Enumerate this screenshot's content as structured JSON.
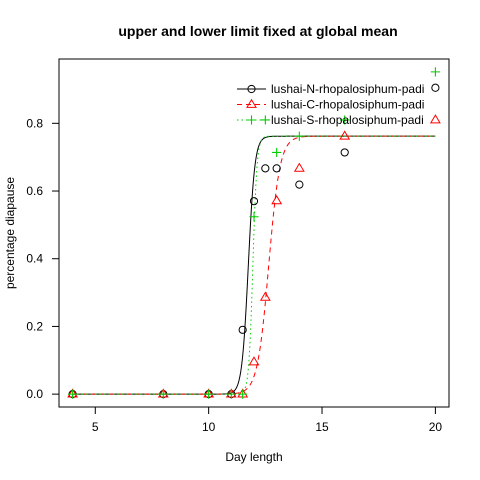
{
  "chart_data": {
    "type": "scatter",
    "title": "upper and lower limit fixed at global mean",
    "xlabel": "Day length",
    "ylabel": "percentage diapause",
    "xlim": [
      3.4,
      20.6
    ],
    "ylim": [
      -0.038,
      0.99
    ],
    "xticks": [
      5,
      10,
      15,
      20
    ],
    "yticks": [
      0.0,
      0.2,
      0.4,
      0.6,
      0.8
    ],
    "ytick_labels": [
      "0.0",
      "0.2",
      "0.4",
      "0.6",
      "0.8"
    ],
    "grid": false,
    "legend_position": "top-right",
    "series": [
      {
        "name": "lushai-N-rhopalosiphum-padi",
        "color": "#000000",
        "marker": "circle",
        "line_style": "solid",
        "points": [
          [
            4,
            0.0
          ],
          [
            8,
            0.0
          ],
          [
            10,
            0.0
          ],
          [
            11,
            0.0
          ],
          [
            11.5,
            0.19
          ],
          [
            12,
            0.57
          ],
          [
            12.5,
            0.667
          ],
          [
            13,
            0.667
          ],
          [
            14,
            0.619
          ],
          [
            16,
            0.714
          ],
          [
            20,
            0.905
          ]
        ],
        "curve": {
          "lower": 0.0,
          "upper": 0.762,
          "midpoint": 11.75,
          "slope": 7.0
        }
      },
      {
        "name": "lushai-C-rhopalosiphum-padi",
        "color": "#ff0000",
        "marker": "triangle",
        "line_style": "dashed",
        "points": [
          [
            4,
            0.0
          ],
          [
            8,
            0.0
          ],
          [
            10,
            0.0
          ],
          [
            11,
            0.0
          ],
          [
            11.5,
            0.0
          ],
          [
            12,
            0.095
          ],
          [
            12.5,
            0.286
          ],
          [
            13,
            0.571
          ],
          [
            14,
            0.667
          ],
          [
            16,
            0.762
          ],
          [
            20,
            0.81
          ]
        ],
        "curve": {
          "lower": 0.0,
          "upper": 0.762,
          "midpoint": 12.65,
          "slope": 4.0
        }
      },
      {
        "name": "lushai-S-rhopalosiphum-padi",
        "color": "#00cd00",
        "marker": "plus",
        "line_style": "dotted",
        "points": [
          [
            4,
            0.0
          ],
          [
            8,
            0.0
          ],
          [
            10,
            0.0
          ],
          [
            11,
            0.0
          ],
          [
            11.5,
            0.0
          ],
          [
            12,
            0.524
          ],
          [
            12.5,
            0.81
          ],
          [
            13,
            0.714
          ],
          [
            14,
            0.762
          ],
          [
            16,
            0.81
          ],
          [
            20,
            0.952
          ]
        ],
        "curve": {
          "lower": 0.0,
          "upper": 0.762,
          "midpoint": 11.95,
          "slope": 11.0
        }
      }
    ]
  }
}
